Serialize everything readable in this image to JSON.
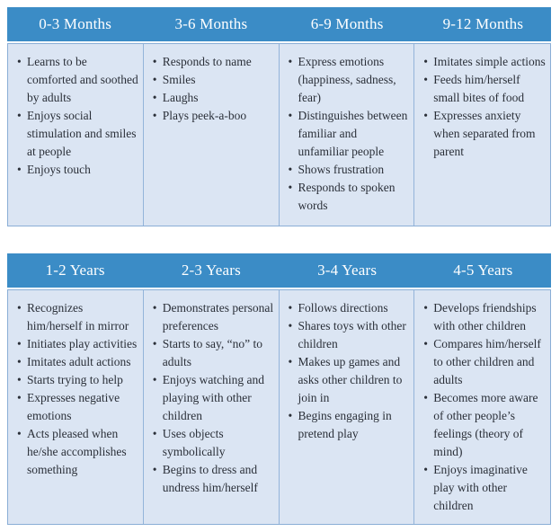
{
  "colors": {
    "header_bg": "#3b8cc6",
    "header_text": "#ffffff",
    "body_bg": "#dbe5f3",
    "border": "#8aaed6",
    "divider": "#93b4da",
    "text": "#2a2f38"
  },
  "tables": [
    {
      "name": "months",
      "columns": [
        {
          "header": "0-3 Months",
          "items": [
            "Learns to be comforted and soothed by adults",
            "Enjoys social stimulation and smiles at people",
            "Enjoys touch"
          ]
        },
        {
          "header": "3-6 Months",
          "items": [
            "Responds to name",
            "Smiles",
            "Laughs",
            "Plays peek-a-boo"
          ]
        },
        {
          "header": "6-9 Months",
          "items": [
            "Express emotions (happiness, sadness, fear)",
            "Distinguishes between familiar and unfamiliar people",
            "Shows frustration",
            "Responds to spoken words"
          ]
        },
        {
          "header": "9-12 Months",
          "items": [
            "Imitates simple actions",
            "Feeds him/herself small bites of food",
            "Expresses anxiety when separated from parent"
          ]
        }
      ]
    },
    {
      "name": "years",
      "columns": [
        {
          "header": "1-2 Years",
          "items": [
            "Recognizes him/herself in mirror",
            "Initiates play activities",
            "Imitates adult actions",
            "Starts trying to help",
            "Expresses negative emotions",
            "Acts pleased when he/she accomplishes something"
          ]
        },
        {
          "header": "2-3 Years",
          "items": [
            "Demonstrates personal preferences",
            "Starts to say, “no” to adults",
            "Enjoys watching and playing with other children",
            "Uses objects symbolically",
            "Begins to dress and undress him/herself"
          ]
        },
        {
          "header": "3-4 Years",
          "items": [
            "Follows directions",
            "Shares toys with other children",
            "Makes up games and asks other children to join in",
            "Begins engaging in pretend play"
          ]
        },
        {
          "header": "4-5 Years",
          "items": [
            "Develops friendships with other children",
            "Compares him/herself to other children and adults",
            "Becomes more aware of other people’s feelings (theory of mind)",
            "Enjoys imaginative play with other children"
          ]
        }
      ]
    }
  ]
}
